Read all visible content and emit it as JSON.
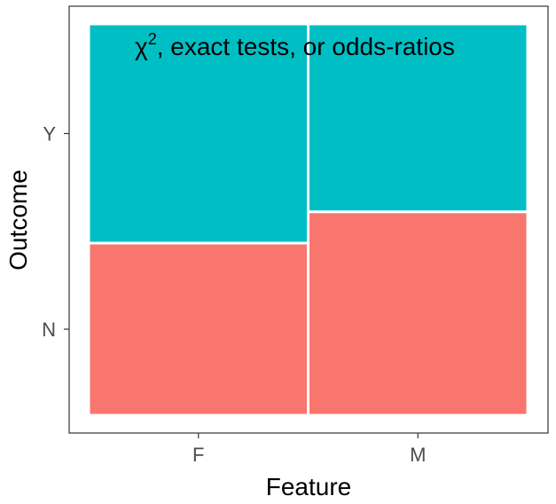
{
  "chart_data": {
    "type": "mosaic",
    "xlabel": "Feature",
    "ylabel": "Outcome",
    "x_categories": [
      "F",
      "M"
    ],
    "x_widths": [
      0.5,
      0.5
    ],
    "y_categories": [
      "N",
      "Y"
    ],
    "series": [
      {
        "name": "N",
        "values": [
          0.44,
          0.52
        ],
        "color": "#F8766D"
      },
      {
        "name": "Y",
        "values": [
          0.56,
          0.48
        ],
        "color": "#00BFC4"
      }
    ],
    "annotation": {
      "symbol": "χ",
      "superscript": "2",
      "text": ", exact tests, or odds-ratios"
    },
    "grid": false,
    "panel_border": true
  }
}
